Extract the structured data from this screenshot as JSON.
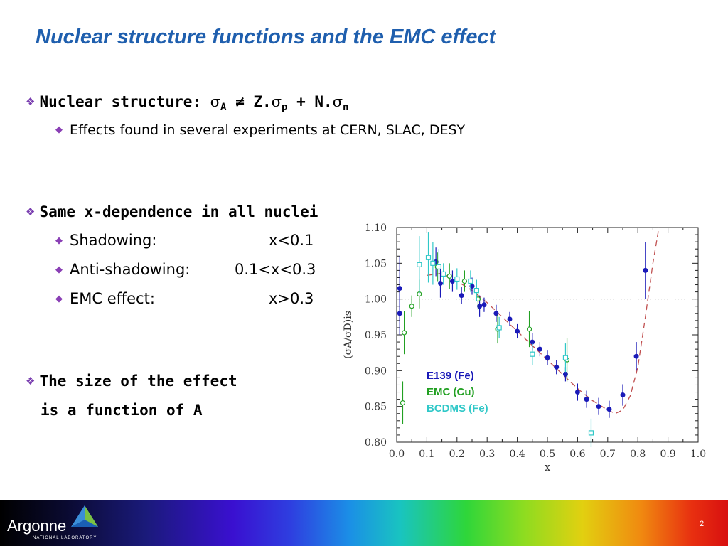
{
  "title": "Nuclear structure functions and the EMC effect",
  "bullets": {
    "nuclear_structure": {
      "label": "Nuclear structure:",
      "sigma": "σ",
      "sub_A": "A",
      "neq": " ≠ Z.",
      "sub_p": "p",
      "plus": " + N.",
      "sub_n": "n"
    },
    "effects_found": "Effects found in several experiments at CERN, SLAC, DESY",
    "same_x": "Same x-dependence in all nuclei",
    "shadowing": {
      "label": "Shadowing:",
      "range": "x<0.1"
    },
    "antishadowing": {
      "label": "Anti-shadowing:",
      "range": "0.1<x<0.3"
    },
    "emc": {
      "label": "EMC effect:",
      "range": "x>0.3"
    },
    "size_line1": "The size of the effect",
    "size_line2": "is a function of A"
  },
  "footer": {
    "logo": "Argonne",
    "logo_sub": "NATIONAL LABORATORY",
    "page": "2"
  },
  "colors": {
    "title": "#1f5fae",
    "bullet_diamond": "#8a3fb5",
    "e139": "#1a1ab8",
    "emc": "#22a022",
    "bcdms": "#30c8c8",
    "curve": "#c05050"
  },
  "chart_data": {
    "type": "scatter",
    "xlabel": "x",
    "ylabel": "(σA/σD)is",
    "xlim": [
      0.0,
      1.0
    ],
    "ylim": [
      0.8,
      1.1
    ],
    "x_ticks": [
      "0.0",
      "0.1",
      "0.2",
      "0.3",
      "0.4",
      "0.5",
      "0.6",
      "0.7",
      "0.8",
      "0.9",
      "1.0"
    ],
    "y_ticks": [
      "0.80",
      "0.85",
      "0.90",
      "0.95",
      "1.00",
      "1.05",
      "1.10"
    ],
    "reference_line": 1.0,
    "legend": [
      "E139 (Fe)",
      "EMC (Cu)",
      "BCDMS (Fe)"
    ],
    "series": [
      {
        "name": "E139 (Fe)",
        "color": "#1a1ab8",
        "marker": "filled-circle",
        "points": [
          [
            0.01,
            1.015,
            0.045
          ],
          [
            0.01,
            0.98,
            0.03
          ],
          [
            0.13,
            1.052,
            0.02
          ],
          [
            0.145,
            1.022,
            0.02
          ],
          [
            0.185,
            1.025,
            0.015
          ],
          [
            0.215,
            1.005,
            0.012
          ],
          [
            0.25,
            1.018,
            0.012
          ],
          [
            0.275,
            0.99,
            0.015
          ],
          [
            0.29,
            0.992,
            0.01
          ],
          [
            0.33,
            0.98,
            0.012
          ],
          [
            0.375,
            0.972,
            0.01
          ],
          [
            0.4,
            0.955,
            0.01
          ],
          [
            0.45,
            0.94,
            0.012
          ],
          [
            0.475,
            0.93,
            0.01
          ],
          [
            0.5,
            0.918,
            0.01
          ],
          [
            0.53,
            0.905,
            0.01
          ],
          [
            0.56,
            0.895,
            0.01
          ],
          [
            0.6,
            0.87,
            0.012
          ],
          [
            0.63,
            0.86,
            0.012
          ],
          [
            0.67,
            0.85,
            0.012
          ],
          [
            0.705,
            0.846,
            0.012
          ],
          [
            0.75,
            0.866,
            0.015
          ],
          [
            0.795,
            0.92,
            0.02
          ],
          [
            0.825,
            1.04,
            0.04
          ]
        ]
      },
      {
        "name": "EMC (Cu)",
        "color": "#22a022",
        "marker": "open-circle",
        "points": [
          [
            0.02,
            0.855,
            0.03
          ],
          [
            0.025,
            0.953,
            0.03
          ],
          [
            0.05,
            0.99,
            0.015
          ],
          [
            0.075,
            1.007,
            0.02
          ],
          [
            0.135,
            1.045,
            0.02
          ],
          [
            0.175,
            1.032,
            0.018
          ],
          [
            0.225,
            1.025,
            0.015
          ],
          [
            0.27,
            1.0,
            0.015
          ],
          [
            0.335,
            0.958,
            0.02
          ],
          [
            0.44,
            0.958,
            0.025
          ],
          [
            0.565,
            0.915,
            0.03
          ]
        ]
      },
      {
        "name": "BCDMS (Fe)",
        "color": "#30c8c8",
        "marker": "open-square",
        "points": [
          [
            0.075,
            1.048,
            0.04
          ],
          [
            0.105,
            1.058,
            0.035
          ],
          [
            0.12,
            1.05,
            0.03
          ],
          [
            0.14,
            1.045,
            0.025
          ],
          [
            0.155,
            1.035,
            0.015
          ],
          [
            0.2,
            1.028,
            0.015
          ],
          [
            0.245,
            1.025,
            0.015
          ],
          [
            0.265,
            1.012,
            0.015
          ],
          [
            0.34,
            0.96,
            0.015
          ],
          [
            0.45,
            0.923,
            0.015
          ],
          [
            0.56,
            0.918,
            0.02
          ],
          [
            0.645,
            0.813,
            0.02
          ]
        ]
      }
    ],
    "fit_curve": {
      "style": "dashed",
      "color": "#c05050",
      "points": [
        [
          0.1,
          1.033
        ],
        [
          0.15,
          1.036
        ],
        [
          0.2,
          1.025
        ],
        [
          0.25,
          1.012
        ],
        [
          0.3,
          0.995
        ],
        [
          0.35,
          0.975
        ],
        [
          0.4,
          0.955
        ],
        [
          0.45,
          0.935
        ],
        [
          0.5,
          0.915
        ],
        [
          0.55,
          0.895
        ],
        [
          0.6,
          0.875
        ],
        [
          0.65,
          0.858
        ],
        [
          0.7,
          0.845
        ],
        [
          0.725,
          0.84
        ],
        [
          0.75,
          0.845
        ],
        [
          0.775,
          0.865
        ],
        [
          0.8,
          0.905
        ],
        [
          0.825,
          0.975
        ],
        [
          0.85,
          1.05
        ],
        [
          0.87,
          1.1
        ]
      ]
    }
  }
}
